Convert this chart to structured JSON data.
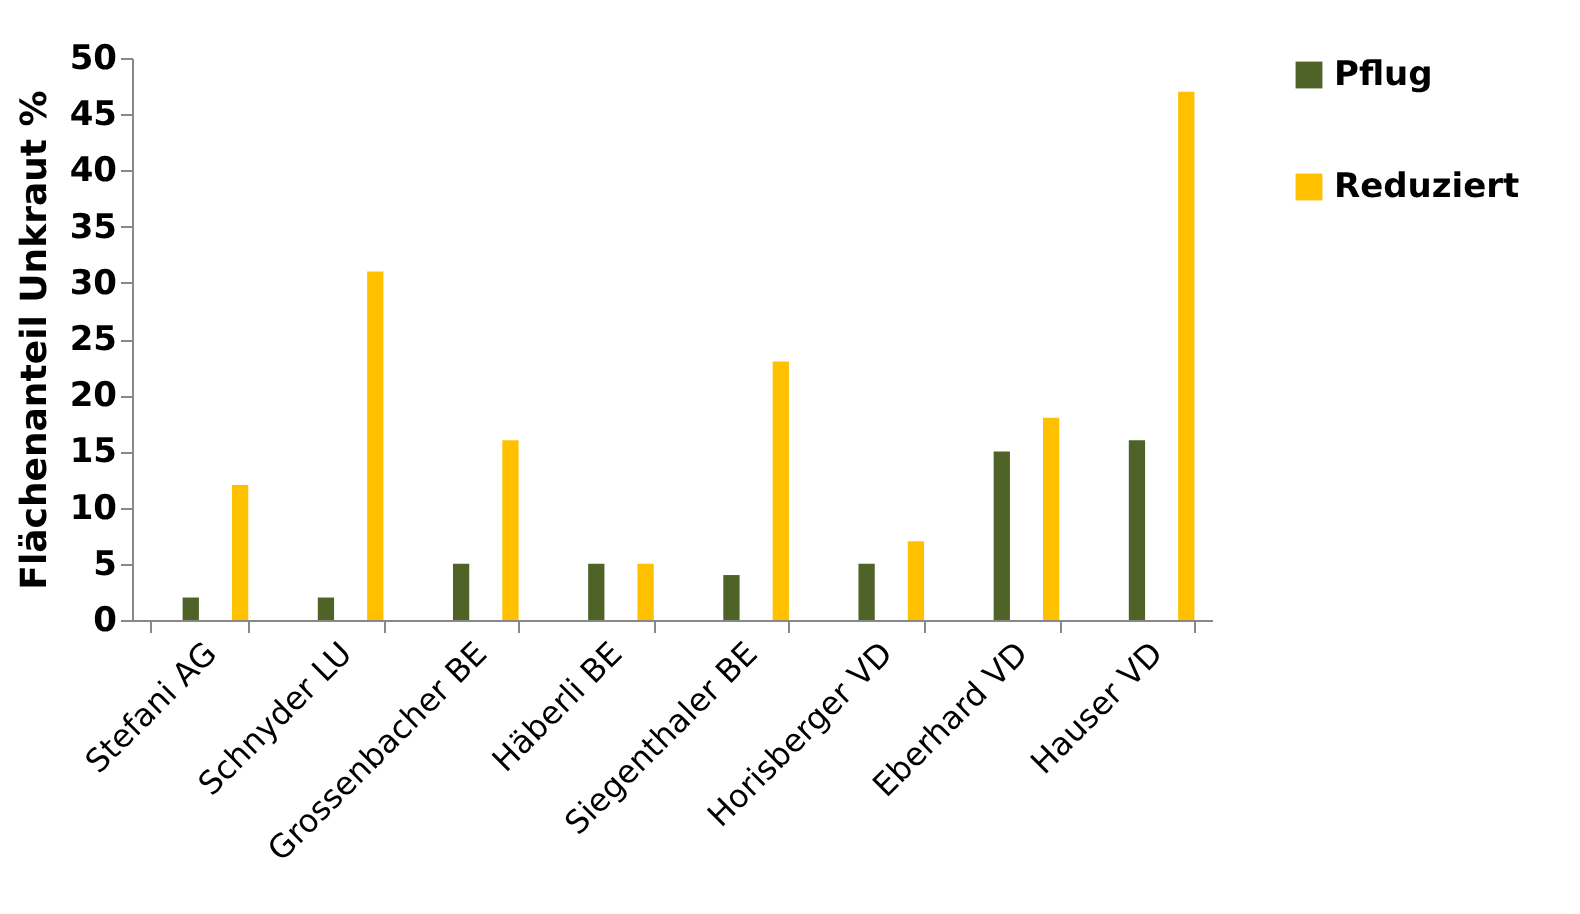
{
  "chart_data": {
    "type": "bar",
    "ylabel": "Flächenanteil Unkraut %",
    "categories": [
      "Stefani AG",
      "Schnyder LU",
      "Grossenbacher BE",
      "Häberli BE",
      "Siegenthaler BE",
      "Horisberger VD",
      "Eberhard VD",
      "Hauser VD"
    ],
    "series": [
      {
        "name": "Pflug",
        "color": "#4f6228",
        "values": [
          2,
          2,
          5,
          5,
          4,
          5,
          15,
          16
        ]
      },
      {
        "name": "Reduziert",
        "color": "#ffc000",
        "values": [
          12,
          31,
          16,
          5,
          23,
          7,
          18,
          47
        ]
      }
    ],
    "ylim": [
      0,
      50
    ],
    "yticks": [
      0,
      5,
      10,
      15,
      20,
      25,
      30,
      35,
      40,
      45,
      50
    ],
    "grid": false,
    "legend": "right"
  }
}
